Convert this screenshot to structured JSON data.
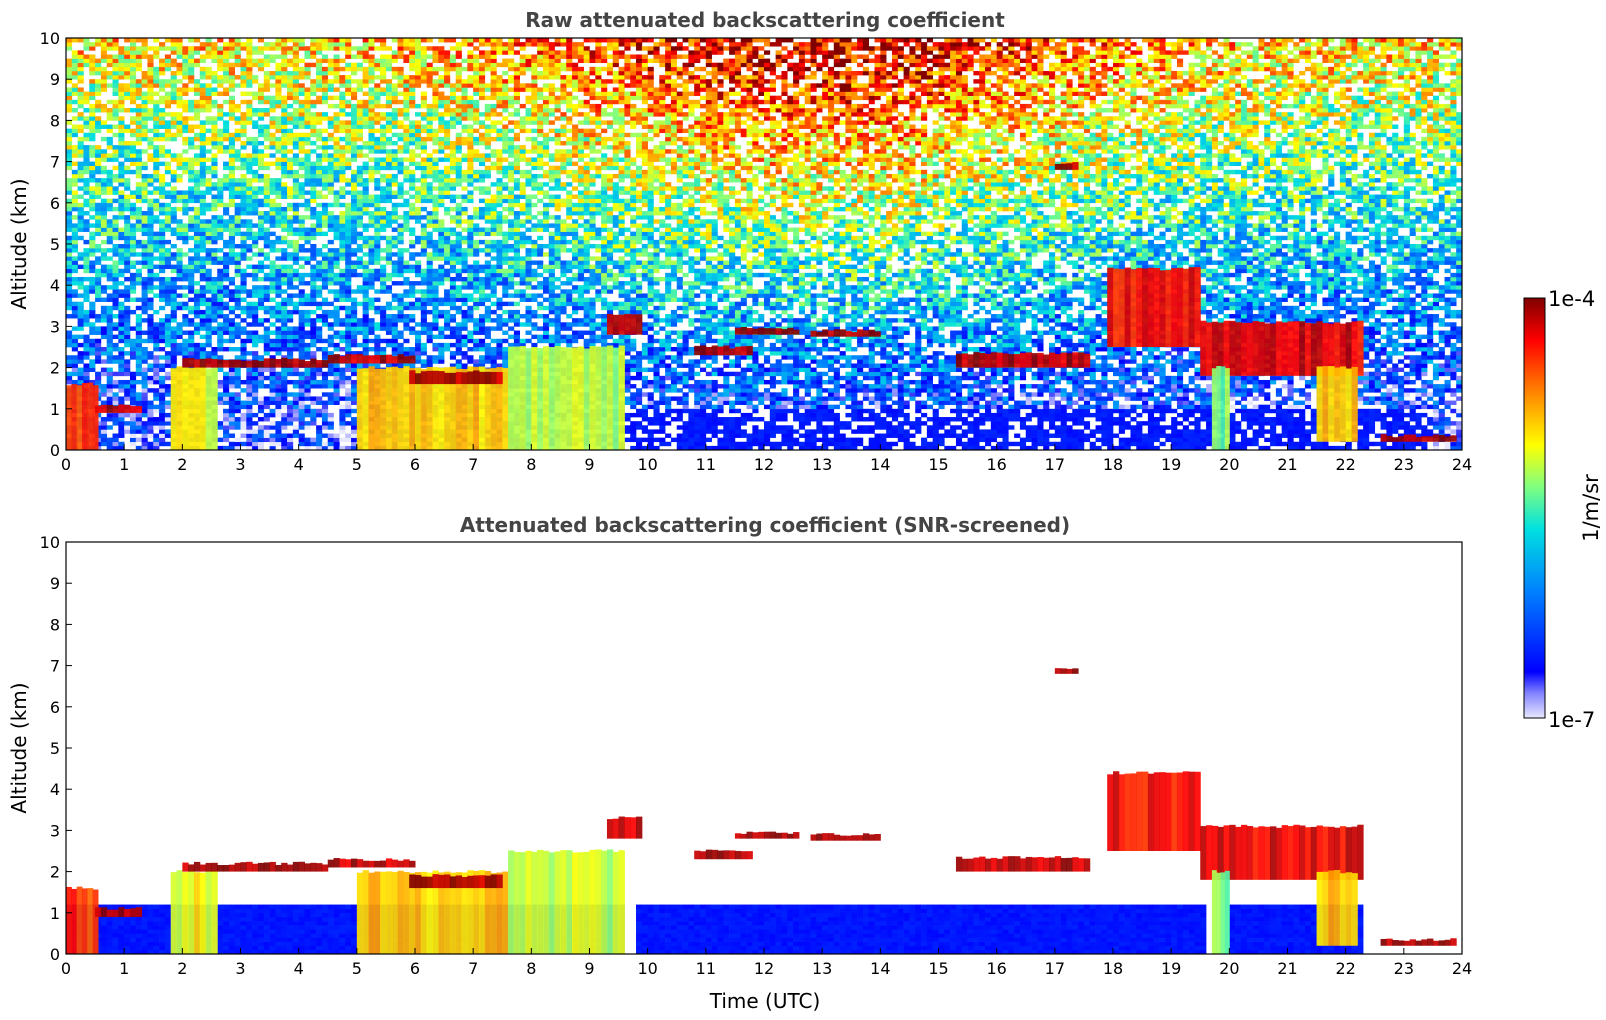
{
  "chart_data": [
    {
      "type": "heatmap",
      "title": "Raw attenuated backscattering coefficient",
      "xlabel": "",
      "ylabel": "Altitude (km)",
      "xlim": [
        0,
        24
      ],
      "ylim": [
        0,
        10
      ],
      "xticks": [
        "0",
        "1",
        "2",
        "3",
        "4",
        "5",
        "6",
        "7",
        "8",
        "9",
        "10",
        "11",
        "12",
        "13",
        "14",
        "15",
        "16",
        "17",
        "18",
        "19",
        "20",
        "21",
        "22",
        "23",
        "24"
      ],
      "yticks": [
        "0",
        "1",
        "2",
        "3",
        "4",
        "5",
        "6",
        "7",
        "8",
        "9",
        "10"
      ],
      "noise": "high",
      "layers": [
        {
          "t0": 0.0,
          "t1": 0.55,
          "a0": 0.0,
          "a1": 1.6,
          "level": 0.85
        },
        {
          "t0": 0.5,
          "t1": 1.3,
          "a0": 0.9,
          "a1": 1.1,
          "level": 0.95
        },
        {
          "t0": 1.8,
          "t1": 2.6,
          "a0": 0.0,
          "a1": 2.0,
          "level": 0.65
        },
        {
          "t0": 2.0,
          "t1": 4.5,
          "a0": 2.0,
          "a1": 2.2,
          "level": 0.97
        },
        {
          "t0": 4.5,
          "t1": 6.0,
          "a0": 2.1,
          "a1": 2.3,
          "level": 0.95
        },
        {
          "t0": 5.0,
          "t1": 7.6,
          "a0": 0.0,
          "a1": 2.0,
          "level": 0.7
        },
        {
          "t0": 5.9,
          "t1": 7.5,
          "a0": 1.6,
          "a1": 1.9,
          "level": 0.97
        },
        {
          "t0": 7.6,
          "t1": 9.6,
          "a0": 0.0,
          "a1": 2.5,
          "level": 0.6
        },
        {
          "t0": 9.3,
          "t1": 9.9,
          "a0": 2.8,
          "a1": 3.3,
          "level": 0.95
        },
        {
          "t0": 10.8,
          "t1": 11.8,
          "a0": 2.3,
          "a1": 2.5,
          "level": 0.97
        },
        {
          "t0": 11.5,
          "t1": 12.6,
          "a0": 2.8,
          "a1": 2.95,
          "level": 0.98
        },
        {
          "t0": 12.8,
          "t1": 14.0,
          "a0": 2.75,
          "a1": 2.9,
          "level": 0.98
        },
        {
          "t0": 15.3,
          "t1": 17.6,
          "a0": 2.0,
          "a1": 2.35,
          "level": 0.95
        },
        {
          "t0": 17.0,
          "t1": 17.4,
          "a0": 6.8,
          "a1": 6.95,
          "level": 0.98
        },
        {
          "t0": 17.9,
          "t1": 19.5,
          "a0": 2.5,
          "a1": 4.4,
          "level": 0.9
        },
        {
          "t0": 19.5,
          "t1": 22.3,
          "a0": 1.8,
          "a1": 3.1,
          "level": 0.92
        },
        {
          "t0": 19.7,
          "t1": 20.0,
          "a0": 0.0,
          "a1": 2.0,
          "level": 0.55
        },
        {
          "t0": 21.5,
          "t1": 22.2,
          "a0": 0.2,
          "a1": 2.0,
          "level": 0.7
        },
        {
          "t0": 22.6,
          "t1": 23.9,
          "a0": 0.2,
          "a1": 0.35,
          "level": 0.97
        }
      ]
    },
    {
      "type": "heatmap",
      "title": "Attenuated backscattering coefficient (SNR-screened)",
      "xlabel": "Time (UTC)",
      "ylabel": "Altitude (km)",
      "xlim": [
        0,
        24
      ],
      "ylim": [
        0,
        10
      ],
      "xticks": [
        "0",
        "1",
        "2",
        "3",
        "4",
        "5",
        "6",
        "7",
        "8",
        "9",
        "10",
        "11",
        "12",
        "13",
        "14",
        "15",
        "16",
        "17",
        "18",
        "19",
        "20",
        "21",
        "22",
        "23",
        "24"
      ],
      "yticks": [
        "0",
        "1",
        "2",
        "3",
        "4",
        "5",
        "6",
        "7",
        "8",
        "9",
        "10"
      ],
      "noise": "screened",
      "layers": [
        {
          "t0": 0.0,
          "t1": 0.55,
          "a0": 0.0,
          "a1": 1.6,
          "level": 0.85
        },
        {
          "t0": 0.5,
          "t1": 1.3,
          "a0": 0.9,
          "a1": 1.1,
          "level": 0.95
        },
        {
          "t0": 1.8,
          "t1": 2.6,
          "a0": 0.0,
          "a1": 2.0,
          "level": 0.65
        },
        {
          "t0": 2.0,
          "t1": 4.5,
          "a0": 2.0,
          "a1": 2.2,
          "level": 0.97
        },
        {
          "t0": 4.5,
          "t1": 6.0,
          "a0": 2.1,
          "a1": 2.3,
          "level": 0.95
        },
        {
          "t0": 5.0,
          "t1": 7.6,
          "a0": 0.0,
          "a1": 2.0,
          "level": 0.7
        },
        {
          "t0": 5.9,
          "t1": 7.5,
          "a0": 1.6,
          "a1": 1.9,
          "level": 0.97
        },
        {
          "t0": 7.6,
          "t1": 9.6,
          "a0": 0.0,
          "a1": 2.5,
          "level": 0.6
        },
        {
          "t0": 9.3,
          "t1": 9.9,
          "a0": 2.8,
          "a1": 3.3,
          "level": 0.95
        },
        {
          "t0": 10.8,
          "t1": 11.8,
          "a0": 2.3,
          "a1": 2.5,
          "level": 0.97
        },
        {
          "t0": 11.5,
          "t1": 12.6,
          "a0": 2.8,
          "a1": 2.95,
          "level": 0.98
        },
        {
          "t0": 12.8,
          "t1": 14.0,
          "a0": 2.75,
          "a1": 2.9,
          "level": 0.98
        },
        {
          "t0": 15.3,
          "t1": 17.6,
          "a0": 2.0,
          "a1": 2.35,
          "level": 0.95
        },
        {
          "t0": 17.0,
          "t1": 17.4,
          "a0": 6.8,
          "a1": 6.95,
          "level": 0.98
        },
        {
          "t0": 17.9,
          "t1": 19.5,
          "a0": 2.5,
          "a1": 4.4,
          "level": 0.9
        },
        {
          "t0": 19.5,
          "t1": 22.3,
          "a0": 1.8,
          "a1": 3.1,
          "level": 0.92
        },
        {
          "t0": 19.7,
          "t1": 20.0,
          "a0": 0.0,
          "a1": 2.0,
          "level": 0.55
        },
        {
          "t0": 21.5,
          "t1": 22.2,
          "a0": 0.2,
          "a1": 2.0,
          "level": 0.7
        },
        {
          "t0": 22.6,
          "t1": 23.9,
          "a0": 0.2,
          "a1": 0.35,
          "level": 0.97
        }
      ]
    }
  ],
  "colorbar": {
    "label": "1/m/sr",
    "max_label": "1e-4",
    "min_label": "1e-7",
    "colormap": "jet"
  }
}
